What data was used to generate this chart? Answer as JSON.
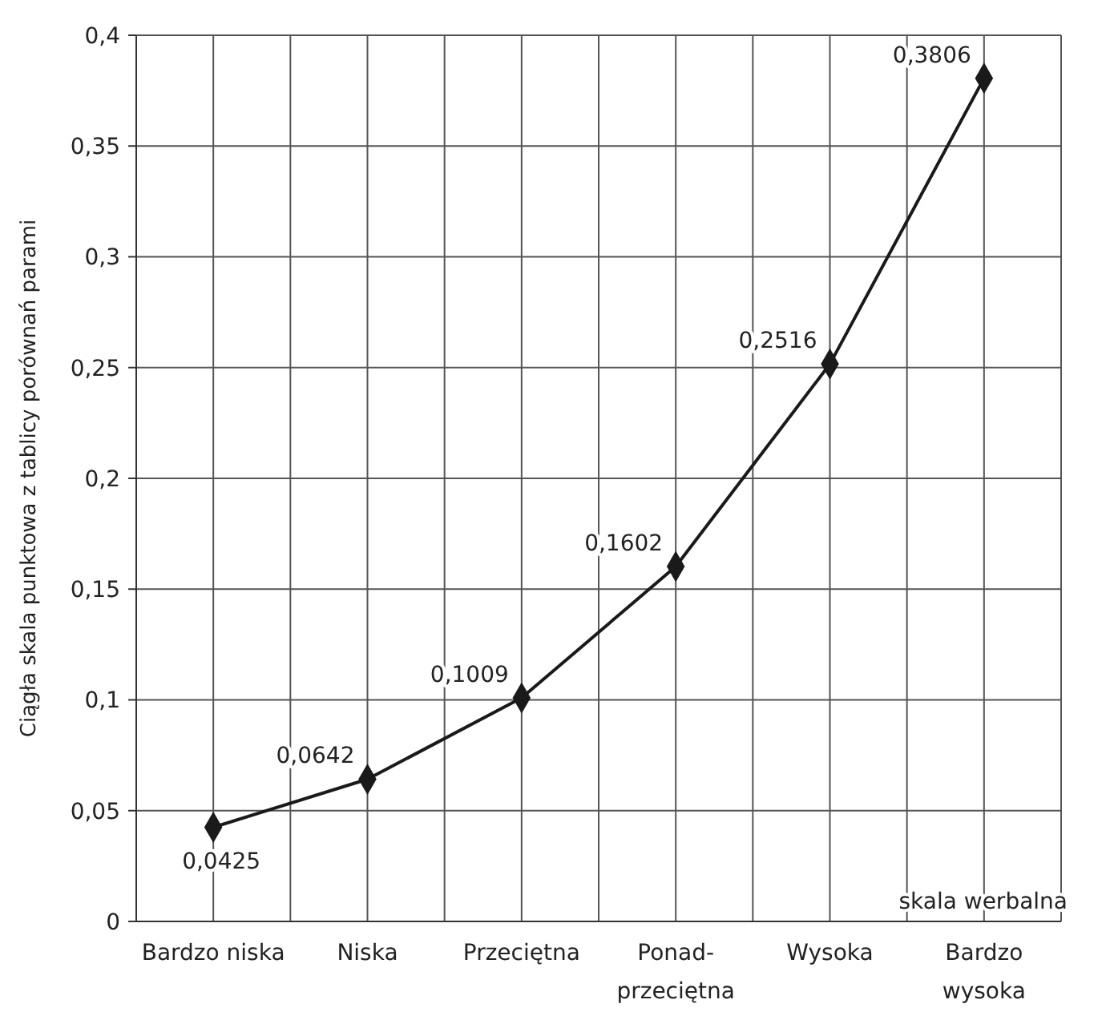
{
  "chart_data": {
    "type": "line",
    "ylabel": "Ciągła skala punktowa z tablicy porównań parami",
    "xlabel": "skala werbalna",
    "categories": [
      "Bardzo niska",
      "Niska",
      "Przeciętna",
      "Ponad-\nprzeciętna",
      "Wysoka",
      "Bardzo\nwysoka"
    ],
    "series": [
      {
        "color": "#1a1a1a",
        "values": [
          0.0425,
          0.0642,
          0.1009,
          0.1602,
          0.2516,
          0.3806
        ],
        "value_labels": [
          "0,0425",
          "0,0642",
          "0,1009",
          "0,1602",
          "0,2516",
          "0,3806"
        ]
      }
    ],
    "ylim": [
      0,
      0.4
    ],
    "yticks": [
      0,
      {
        "value": 0.05,
        "label": "0,05"
      },
      {
        "value": 0.1,
        "label": "0,1"
      },
      {
        "value": 0.15,
        "label": "0,15"
      },
      {
        "value": 0.2,
        "label": "0,2"
      },
      {
        "value": 0.25,
        "label": "0,25"
      },
      {
        "value": 0.3,
        "label": "0,3"
      },
      {
        "value": 0.35,
        "label": "0,35"
      },
      {
        "value": 0.4,
        "label": "0,4"
      }
    ],
    "grid": true,
    "marker": "diamond",
    "line_style": "solid"
  }
}
